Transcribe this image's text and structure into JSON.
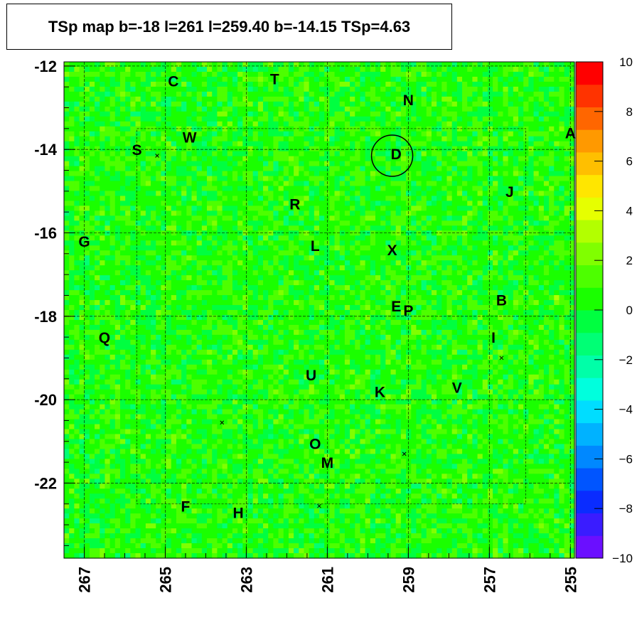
{
  "chart_data": {
    "type": "heatmap",
    "title": "TSp map b=-18 l=261 l=259.40 b=-14.15 TSp=4.63",
    "xlabel": "",
    "ylabel": "",
    "xlim": [
      267.5,
      254.9
    ],
    "ylim": [
      -23.8,
      -11.9
    ],
    "x_reversed": true,
    "x_ticks": [
      "267",
      "265",
      "263",
      "261",
      "259",
      "257",
      "255"
    ],
    "y_ticks": [
      "-12",
      "-14",
      "-16",
      "-18",
      "-20",
      "-22"
    ],
    "colorbar": {
      "range": [
        -10,
        10
      ],
      "ticks": [
        "10",
        "8",
        "6",
        "4",
        "2",
        "0",
        "−2",
        "−4",
        "−6",
        "−8",
        "−10"
      ],
      "colors": [
        "#6b0fff",
        "#3a1cff",
        "#0a2cff",
        "#0055ff",
        "#0088ff",
        "#00b2ff",
        "#00ddff",
        "#00ffdd",
        "#00ffa8",
        "#00ff75",
        "#00ff40",
        "#1aff00",
        "#4dff00",
        "#80ff00",
        "#b3ff00",
        "#e6ff00",
        "#ffe600",
        "#ffbf00",
        "#ff9900",
        "#ff6600",
        "#ff3300",
        "#ff0000"
      ]
    },
    "background_level": 0.5,
    "grid": true,
    "sources": [
      {
        "label": "C",
        "l": 264.8,
        "b": -12.35
      },
      {
        "label": "T",
        "l": 262.3,
        "b": -12.3
      },
      {
        "label": "N",
        "l": 259.0,
        "b": -12.8
      },
      {
        "label": "A",
        "l": 255.0,
        "b": -13.6
      },
      {
        "label": "S",
        "l": 265.7,
        "b": -14.0
      },
      {
        "label": "W",
        "l": 264.4,
        "b": -13.7
      },
      {
        "label": "D",
        "l": 259.3,
        "b": -14.1
      },
      {
        "label": "J",
        "l": 256.5,
        "b": -15.0
      },
      {
        "label": "R",
        "l": 261.8,
        "b": -15.3
      },
      {
        "label": "G",
        "l": 267.0,
        "b": -16.2
      },
      {
        "label": "L",
        "l": 261.3,
        "b": -16.3
      },
      {
        "label": "X",
        "l": 259.4,
        "b": -16.4
      },
      {
        "label": "B",
        "l": 256.7,
        "b": -17.6
      },
      {
        "label": "E",
        "l": 259.3,
        "b": -17.75
      },
      {
        "label": "P",
        "l": 259.0,
        "b": -17.85
      },
      {
        "label": "Q",
        "l": 266.5,
        "b": -18.5
      },
      {
        "label": "I",
        "l": 256.9,
        "b": -18.5
      },
      {
        "label": "U",
        "l": 261.4,
        "b": -19.4
      },
      {
        "label": "K",
        "l": 259.7,
        "b": -19.8
      },
      {
        "label": "V",
        "l": 257.8,
        "b": -19.7
      },
      {
        "label": "O",
        "l": 261.3,
        "b": -21.05
      },
      {
        "label": "M",
        "l": 261.0,
        "b": -21.5
      },
      {
        "label": "F",
        "l": 264.5,
        "b": -22.55
      },
      {
        "label": "H",
        "l": 263.2,
        "b": -22.7
      }
    ],
    "crosses": [
      {
        "l": 265.2,
        "b": -14.15
      },
      {
        "l": 263.6,
        "b": -20.55
      },
      {
        "l": 259.1,
        "b": -21.3
      },
      {
        "l": 261.2,
        "b": -22.55
      },
      {
        "l": 256.7,
        "b": -19.0
      }
    ],
    "circle": {
      "l": 259.4,
      "b": -14.15
    }
  }
}
